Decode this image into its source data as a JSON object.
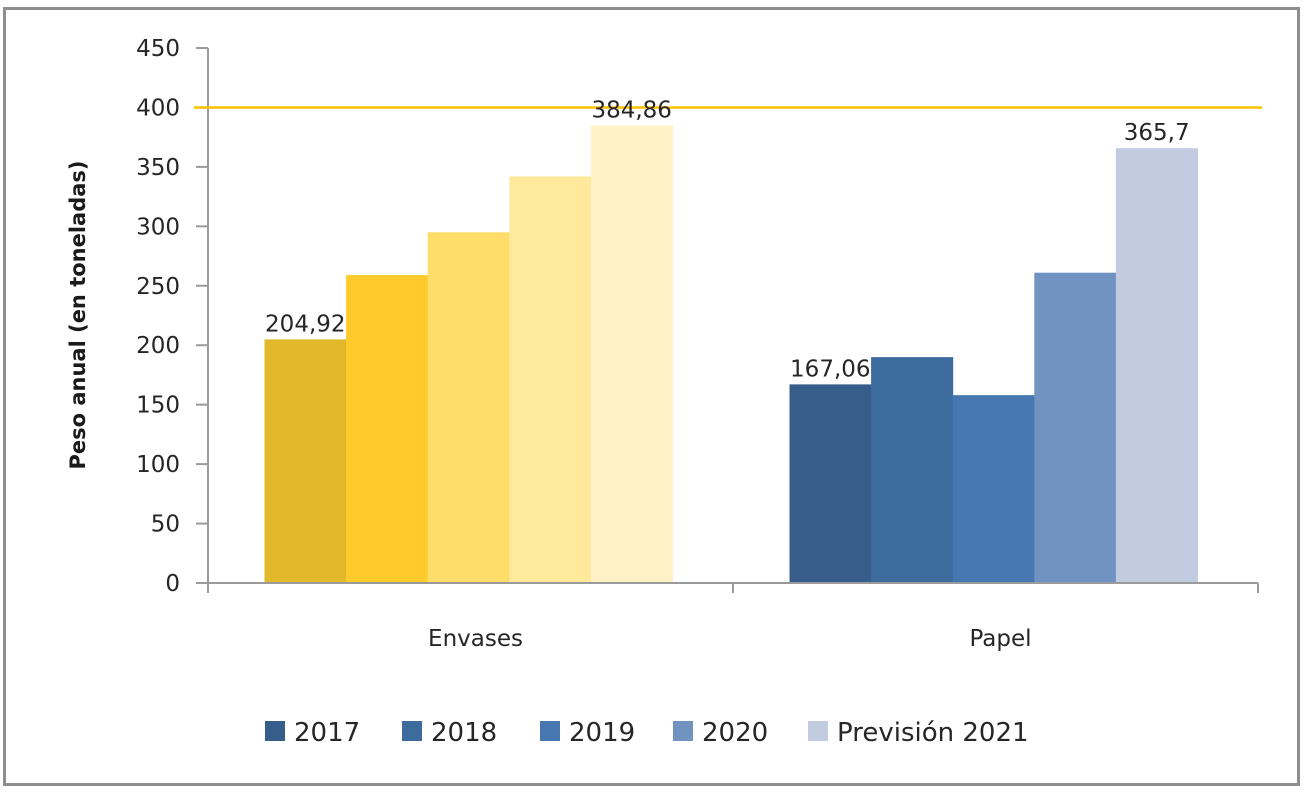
{
  "chart_data": {
    "type": "bar",
    "title": "",
    "xlabel": "",
    "ylabel": "Peso anual (en toneladas)",
    "ylim": [
      0,
      450
    ],
    "yticks": [
      0,
      50,
      100,
      150,
      200,
      250,
      300,
      350,
      400,
      450
    ],
    "categories": [
      "Envases",
      "Papel"
    ],
    "series": [
      {
        "name": "2017",
        "values": [
          204.92,
          167.06
        ],
        "colors": [
          "#e1b82a",
          "#375d8a"
        ]
      },
      {
        "name": "2018",
        "values": [
          259,
          190
        ],
        "colors": [
          "#ffca2b",
          "#3e6b9e"
        ]
      },
      {
        "name": "2019",
        "values": [
          295,
          158
        ],
        "colors": [
          "#fedd68",
          "#4677b0"
        ]
      },
      {
        "name": "2020",
        "values": [
          342,
          261
        ],
        "colors": [
          "#ffe99d",
          "#7193c2"
        ]
      },
      {
        "name": "Previsión 2021",
        "values": [
          384.86,
          365.7
        ],
        "colors": [
          "#fff2c7",
          "#c1cce0"
        ]
      }
    ],
    "data_labels": [
      {
        "category": "Envases",
        "series": "2017",
        "text": "204,92"
      },
      {
        "category": "Envases",
        "series": "Previsión 2021",
        "text": "384,86"
      },
      {
        "category": "Papel",
        "series": "2017",
        "text": "167,06"
      },
      {
        "category": "Papel",
        "series": "Previsión 2021",
        "text": "365,7"
      }
    ],
    "reference_line": {
      "value": 400,
      "color": "#ffc000"
    },
    "legend": {
      "position": "bottom",
      "marker_colors": [
        "#375d8a",
        "#3e6b9e",
        "#4677b0",
        "#7193c2",
        "#c1cce0"
      ]
    },
    "grid": false
  }
}
